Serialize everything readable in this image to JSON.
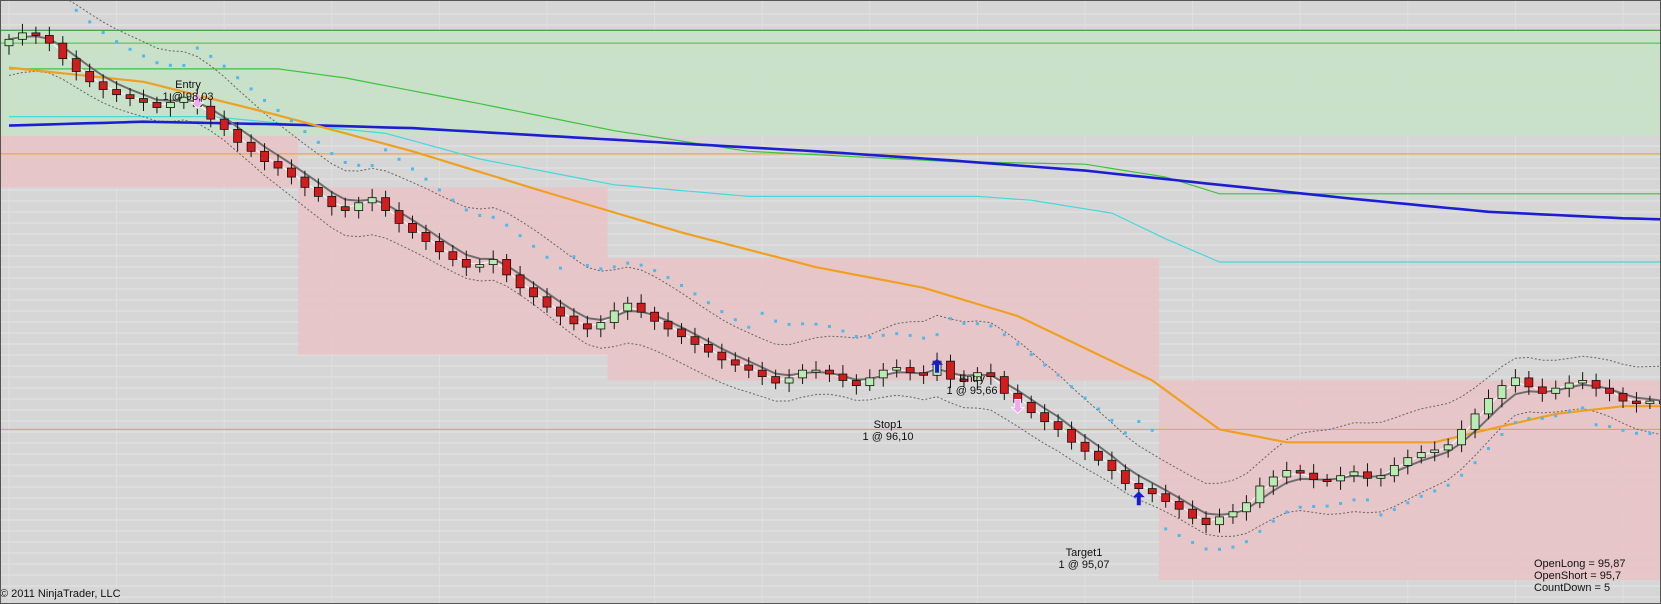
{
  "chart_data": {
    "type": "candlestick",
    "title": "",
    "xlabel": "",
    "ylabel": "",
    "grid": true,
    "ylim": [
      94.35,
      98.7
    ],
    "colors": {
      "background": "#d6d6d6",
      "up_candle": "#b9ecb2",
      "down_candle": "#d11d1d",
      "long_zone": "#c8e0c8",
      "short_zone": "#e9c4c8",
      "slow_ma": "#1d1dd4",
      "mid_ma": "#f0a020",
      "fast_ma": "#6e6e6e",
      "parabolic_sar": "#4fb8ec",
      "cyan_band": "#45d8dc",
      "green_band": "#3ec33e",
      "arrow_up": "#1a1ad0",
      "arrow_down": "#f0a8f0"
    },
    "annotations": [
      {
        "id": "entry1",
        "line1": "Entry",
        "line2": "1 @ 98,03",
        "bar": 14,
        "price": 98.03,
        "arrow": "down"
      },
      {
        "id": "stop1",
        "line1": "Stop1",
        "line2": "1 @ 96,10",
        "bar": 69,
        "price": 96.1,
        "arrow": "up"
      },
      {
        "id": "entry2",
        "line1": "Entry",
        "line2": "1 @ 95,66",
        "bar": 75,
        "price": 95.66,
        "arrow": "down"
      },
      {
        "id": "target1",
        "line1": "Target1",
        "line2": "1 @ 95,07",
        "bar": 84,
        "price": 95.07,
        "arrow": "up"
      }
    ],
    "info": {
      "open_long": "OpenLong = 95,87",
      "open_short": "OpenShort = 95,7",
      "countdown": "CountDown = 5"
    },
    "copyright": "© 2011 NinjaTrader, LLC",
    "closes": [
      98.55,
      98.6,
      98.58,
      98.52,
      98.4,
      98.3,
      98.22,
      98.16,
      98.12,
      98.09,
      98.06,
      98.02,
      98.06,
      98.1,
      98.03,
      97.93,
      97.85,
      97.75,
      97.68,
      97.6,
      97.55,
      97.48,
      97.4,
      97.33,
      97.25,
      97.22,
      97.28,
      97.32,
      97.22,
      97.12,
      97.05,
      96.98,
      96.9,
      96.84,
      96.78,
      96.8,
      96.84,
      96.72,
      96.62,
      96.55,
      96.47,
      96.4,
      96.34,
      96.3,
      96.35,
      96.44,
      96.5,
      96.43,
      96.36,
      96.3,
      96.24,
      96.18,
      96.12,
      96.06,
      96.02,
      95.98,
      95.93,
      95.88,
      95.92,
      95.98,
      95.98,
      95.95,
      95.9,
      95.86,
      95.92,
      95.98,
      96.0,
      95.96,
      95.94,
      96.05,
      95.91,
      95.9,
      95.96,
      95.93,
      95.8,
      95.73,
      95.65,
      95.58,
      95.52,
      95.42,
      95.35,
      95.28,
      95.2,
      95.1,
      95.06,
      95.02,
      94.96,
      94.9,
      94.83,
      94.78,
      94.84,
      94.88,
      94.95,
      95.08,
      95.15,
      95.2,
      95.18,
      95.13,
      95.12,
      95.16,
      95.19,
      95.14,
      95.16,
      95.24,
      95.3,
      95.34,
      95.36,
      95.4,
      95.52,
      95.64,
      95.76,
      95.86,
      95.92,
      95.85,
      95.8,
      95.84,
      95.88,
      95.9,
      95.84,
      95.8,
      95.74,
      95.72,
      95.74,
      95.72,
      95.7,
      95.68,
      95.74,
      95.78
    ],
    "ma_slow_points": [
      [
        0,
        97.88
      ],
      [
        10,
        97.91
      ],
      [
        20,
        97.89
      ],
      [
        30,
        97.86
      ],
      [
        40,
        97.8
      ],
      [
        50,
        97.74
      ],
      [
        60,
        97.68
      ],
      [
        70,
        97.61
      ],
      [
        80,
        97.53
      ],
      [
        90,
        97.42
      ],
      [
        100,
        97.31
      ],
      [
        110,
        97.21
      ],
      [
        120,
        97.16
      ],
      [
        127,
        97.14
      ]
    ],
    "ma_mid_points": [
      [
        0,
        98.33
      ],
      [
        10,
        98.22
      ],
      [
        20,
        97.96
      ],
      [
        30,
        97.68
      ],
      [
        40,
        97.36
      ],
      [
        50,
        97.05
      ],
      [
        60,
        96.78
      ],
      [
        68,
        96.62
      ],
      [
        75,
        96.4
      ],
      [
        85,
        95.9
      ],
      [
        90,
        95.52
      ],
      [
        95,
        95.42
      ],
      [
        100,
        95.42
      ],
      [
        106,
        95.42
      ],
      [
        110,
        95.52
      ],
      [
        115,
        95.64
      ],
      [
        120,
        95.7
      ],
      [
        127,
        95.7
      ]
    ],
    "short_zone_bands": [
      {
        "from": 0,
        "to": 22,
        "low": 97.4,
        "high": 97.8
      },
      {
        "from": 22,
        "to": 45,
        "low": 96.1,
        "high": 97.4
      },
      {
        "from": 45,
        "to": 86,
        "low": 95.9,
        "high": 96.85
      },
      {
        "from": 86,
        "to": 128,
        "low": 94.35,
        "high": 95.9
      }
    ],
    "long_zone": {
      "low": 97.8,
      "high": 98.62
    },
    "horizontal_levels": [
      {
        "price": 98.62,
        "color": "#2a8a2a"
      },
      {
        "price": 98.52,
        "color": "#3ec33e"
      },
      {
        "price": 97.66,
        "color": "#f0a020"
      },
      {
        "price": 95.52,
        "color": "#f0a020"
      }
    ],
    "cyan_band_points": [
      [
        0,
        97.95
      ],
      [
        15,
        97.95
      ],
      [
        20,
        97.9
      ],
      [
        28,
        97.82
      ],
      [
        35,
        97.62
      ],
      [
        45,
        97.42
      ],
      [
        55,
        97.33
      ],
      [
        65,
        97.33
      ],
      [
        72,
        97.33
      ],
      [
        76,
        97.3
      ],
      [
        82,
        97.2
      ],
      [
        86,
        97.0
      ],
      [
        90,
        96.82
      ],
      [
        128,
        96.82
      ]
    ],
    "green_band_points": [
      [
        0,
        98.32
      ],
      [
        20,
        98.32
      ],
      [
        25,
        98.25
      ],
      [
        35,
        98.05
      ],
      [
        45,
        97.84
      ],
      [
        55,
        97.68
      ],
      [
        70,
        97.6
      ],
      [
        80,
        97.58
      ],
      [
        86,
        97.48
      ],
      [
        90,
        97.35
      ],
      [
        128,
        97.35
      ]
    ]
  }
}
